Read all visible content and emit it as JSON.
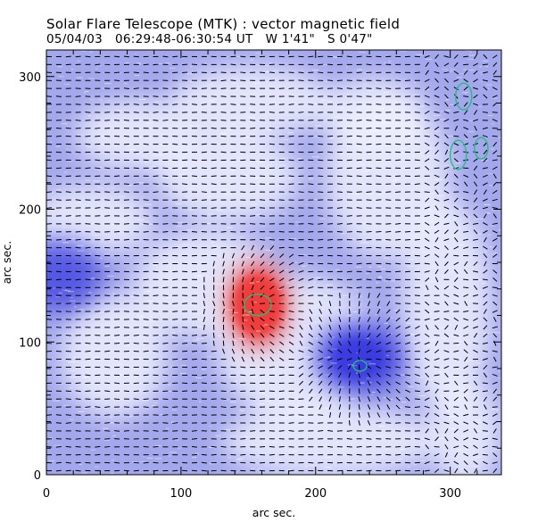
{
  "header": {
    "title": "Solar Flare Telescope (MTK) : vector magnetic field",
    "date": "05/04/03",
    "time_range": "06:29:48-06:30:54 UT",
    "lon": "W 1'41\"",
    "lat": "S 0'47\""
  },
  "colors": {
    "positive": "#f03a3a",
    "negative": "#3a3ce0",
    "neutral": "#eef0ff",
    "contour": "#22c07a",
    "vector": "#000000"
  },
  "chart_data": {
    "type": "heatmap",
    "title": "Solar Flare Telescope (MTK) : vector magnetic field",
    "xlabel": "arc sec.",
    "ylabel": "arc sec.",
    "xlim": [
      0,
      338
    ],
    "ylim": [
      0,
      320
    ],
    "xticks": [
      0,
      100,
      200,
      300
    ],
    "yticks": [
      0,
      100,
      200,
      300
    ],
    "minor_tick_step": 20,
    "field_features": [
      {
        "name": "positive-polarity spot",
        "polarity": "positive",
        "x": 157,
        "y": 128,
        "peak": 1.0
      },
      {
        "name": "negative-polarity spot",
        "polarity": "negative",
        "x": 232,
        "y": 88,
        "peak": -0.95
      },
      {
        "name": "negative plage west",
        "polarity": "negative",
        "x": 10,
        "y": 150,
        "peak": -0.55
      }
    ],
    "contours": [
      {
        "x": 157,
        "y": 128,
        "rx": 10,
        "ry": 8
      },
      {
        "x": 233,
        "y": 82,
        "rx": 5,
        "ry": 4
      },
      {
        "x": 310,
        "y": 285,
        "rx": 6,
        "ry": 10
      },
      {
        "x": 306,
        "y": 241,
        "rx": 6,
        "ry": 11
      },
      {
        "x": 323,
        "y": 246,
        "rx": 5,
        "ry": 8
      }
    ],
    "vector_grid_step": 6,
    "vector_azimuth": "predominantly horizontal (east-west), twisted near spots and at west limb"
  }
}
